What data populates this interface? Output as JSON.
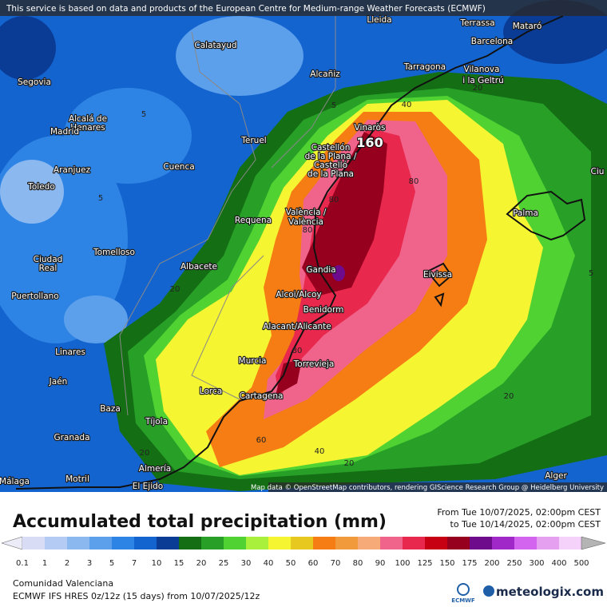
{
  "header": {
    "notice": "This service is based on data and products of the European Centre for Medium-range Weather Forecasts (ECMWF)"
  },
  "map": {
    "places": [
      "Lleida",
      "Terrassa",
      "Mataró",
      "Barcelona",
      "Calatayud",
      "Tarragona",
      "Alcañiz",
      "Vilanova",
      "i la Geltrú",
      "Segovia",
      "Alcalá de",
      "Henares",
      "Madrid",
      "Vinaròs",
      "Teruel",
      "Castellón",
      "de la Plana /",
      "Castelló",
      "de la Plana",
      "Aranjuez",
      "Cuenca",
      "Toledo",
      "Ciu",
      "València /",
      "València",
      "Requena",
      "Palma",
      "Tomelloso",
      "Ciudad",
      "Real",
      "Albacete",
      "Gandia",
      "Eivissa",
      "Puertollano",
      "Alcoi/Alcoy",
      "Benidorm",
      "Alacant/Alicante",
      "Linares",
      "Murcia",
      "Torrevieja",
      "Jaén",
      "Lorca",
      "Cartagena",
      "Baza",
      "Tíjola",
      "Granada",
      "Almería",
      "Motril",
      "Málaga",
      "El Ejido",
      "Alger"
    ],
    "contour_labels": [
      "40",
      "160",
      "80",
      "80",
      "80",
      "20",
      "80",
      "60",
      "40",
      "20",
      "20",
      "20",
      "20",
      "5",
      "5",
      "5",
      "5"
    ],
    "attribution": "Map data © OpenStreetMap contributors, rendering GIScience Research Group @ Heidelberg University"
  },
  "footer": {
    "title": "Accumulated total precipitation (mm)",
    "from": "From Tue 10/07/2025, 02:00pm CEST",
    "to": "to Tue 10/14/2025, 02:00pm CEST",
    "region": "Comunidad Valenciana",
    "model": "ECMWF IFS HRES 0z/12z (15 days) from  10/07/2025/12z",
    "logo_ecmwf": "ECMWF",
    "logo_site": "meteologix.com"
  },
  "colorbar": {
    "labels": [
      "0.1",
      "1",
      "2",
      "3",
      "5",
      "7",
      "10",
      "15",
      "20",
      "25",
      "30",
      "40",
      "50",
      "60",
      "70",
      "80",
      "90",
      "100",
      "125",
      "150",
      "175",
      "200",
      "250",
      "300",
      "400",
      "500"
    ],
    "below_color": "#ececf8",
    "colors": [
      "#d8dcf4",
      "#b4ccf4",
      "#8cb8f0",
      "#5ca0ec",
      "#2e84e4",
      "#1464d0",
      "#0a3c96",
      "#146e14",
      "#28a028",
      "#50d232",
      "#a8f03c",
      "#f5f532",
      "#e6c81e",
      "#f57d14",
      "#f09a3c",
      "#f5aa78",
      "#f0648c",
      "#e8284c",
      "#c80014",
      "#96001e",
      "#6e0a8c",
      "#a028c8",
      "#d264f0",
      "#e6a0f0",
      "#f5d2fa"
    ],
    "above_color": "#b4b4b4"
  }
}
